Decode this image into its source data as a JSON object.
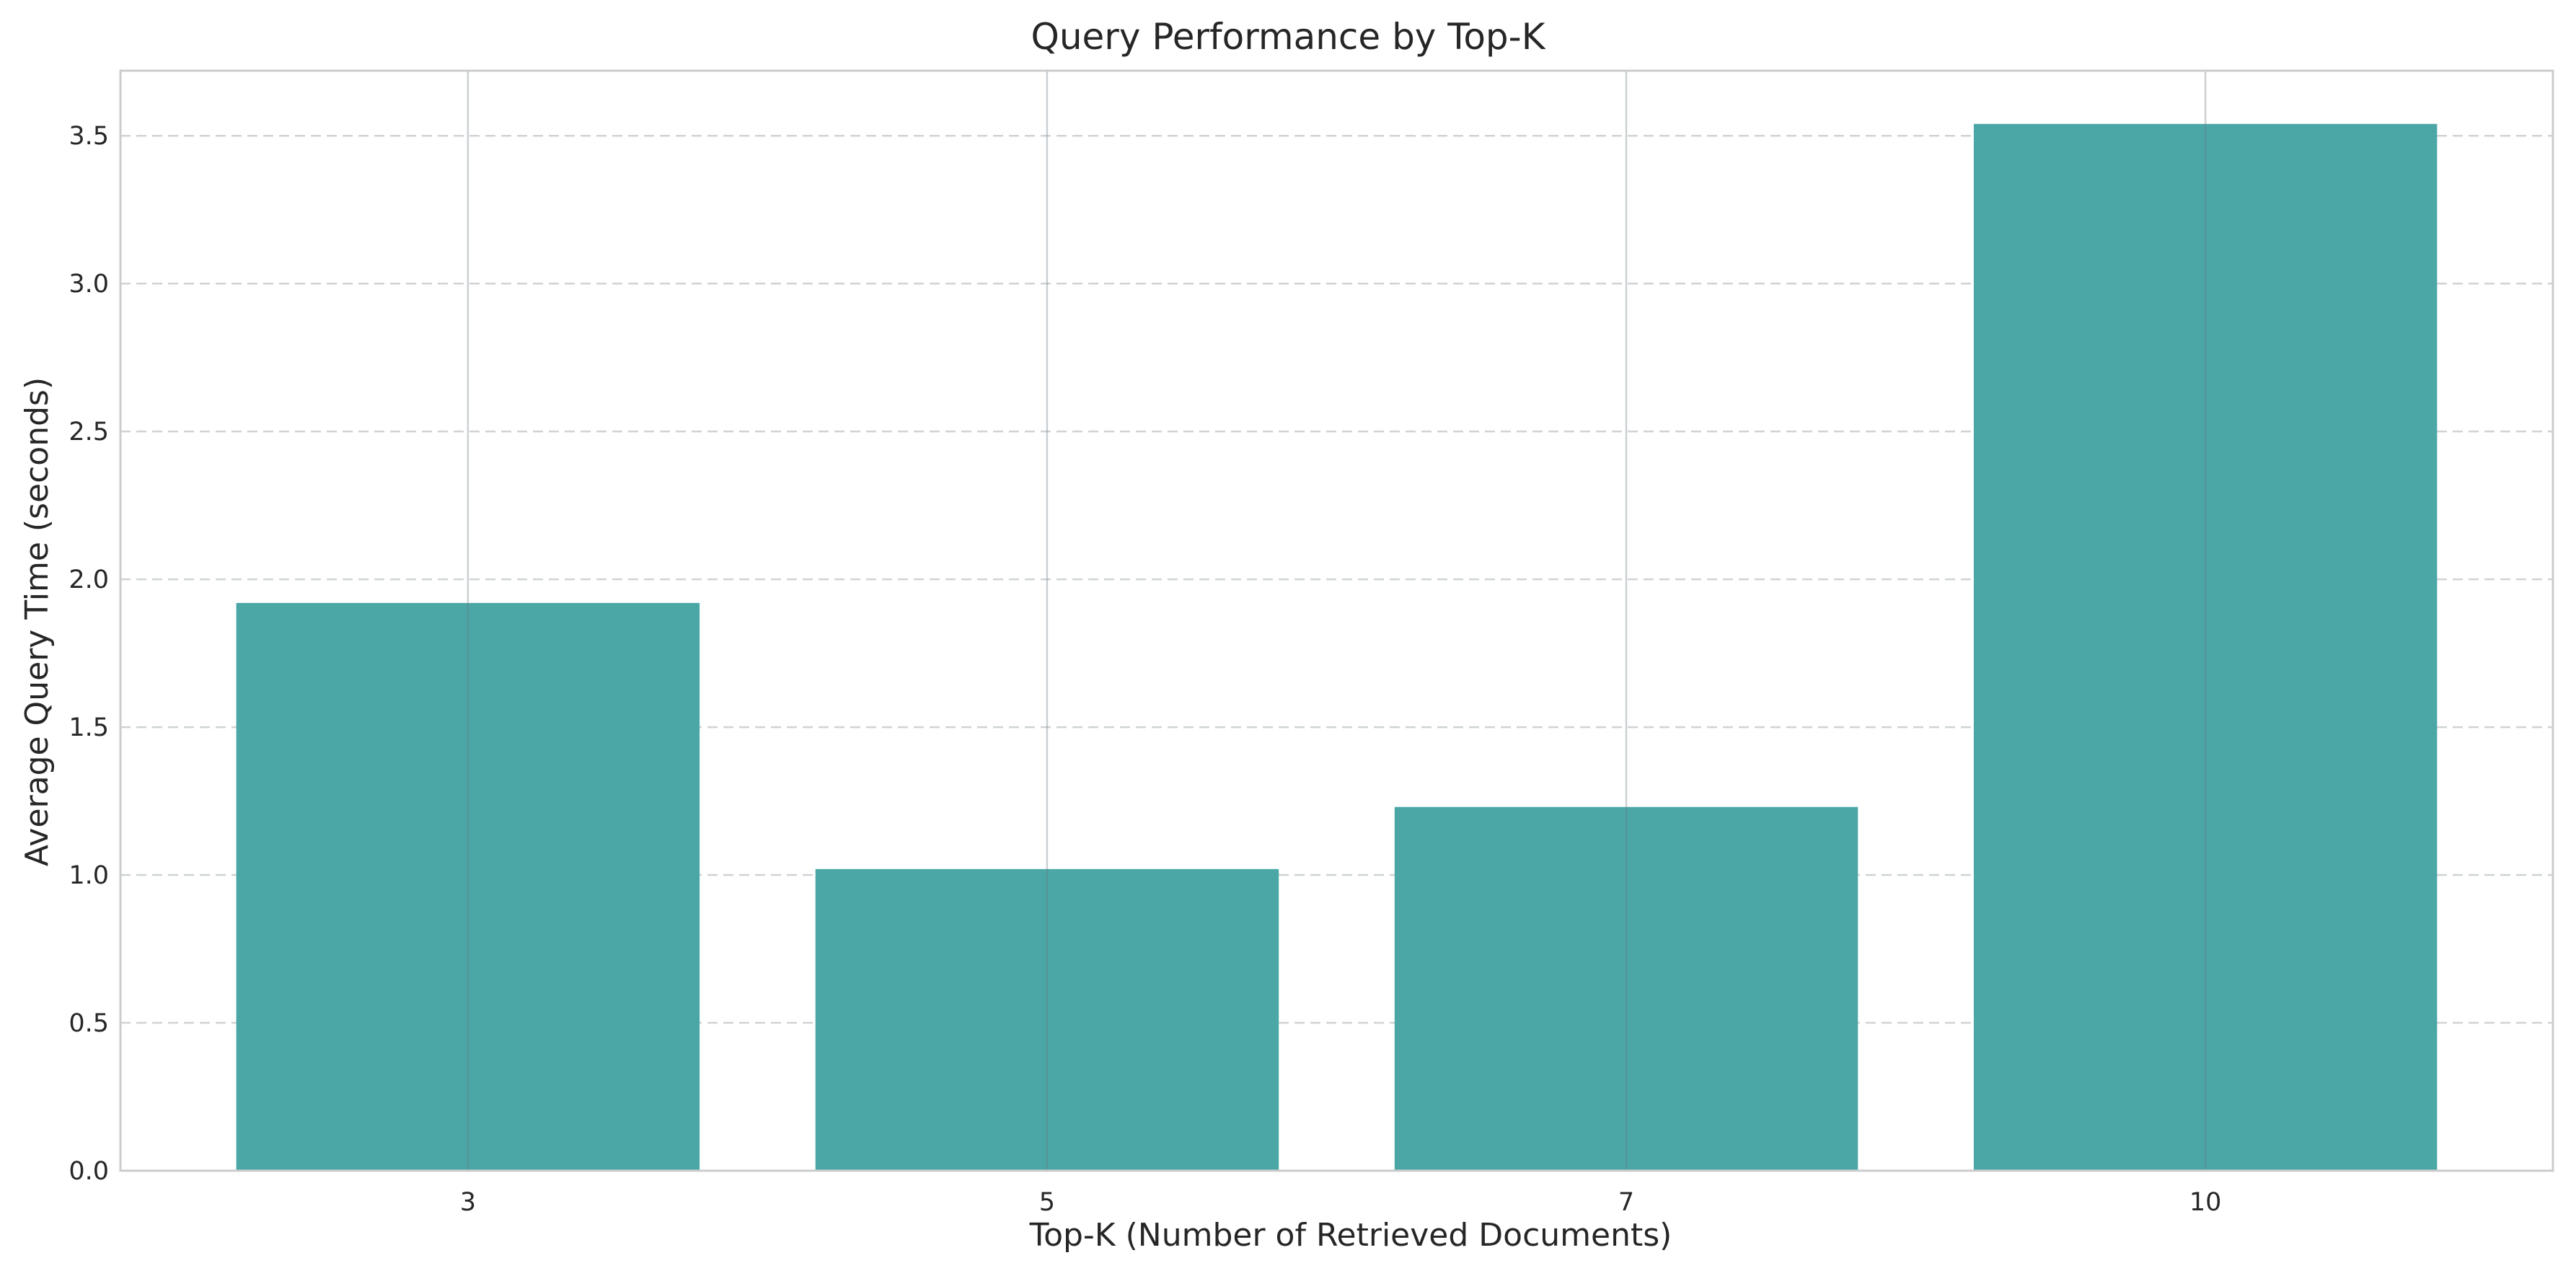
{
  "chart_data": {
    "type": "bar",
    "title": "Query Performance by Top-K",
    "xlabel": "Top-K (Number of Retrieved Documents)",
    "ylabel": "Average Query Time (seconds)",
    "categories": [
      "3",
      "5",
      "7",
      "10"
    ],
    "values": [
      1.92,
      1.02,
      1.23,
      3.54
    ],
    "ylim": [
      0,
      3.72
    ],
    "yticks": [
      0.0,
      0.5,
      1.0,
      1.5,
      2.0,
      2.5,
      3.0,
      3.5
    ],
    "ytick_labels": [
      "0.0",
      "0.5",
      "1.0",
      "1.5",
      "2.0",
      "2.5",
      "3.0",
      "3.5"
    ],
    "grid": true,
    "legend": "none",
    "bar_color": "#4ba6a6"
  }
}
